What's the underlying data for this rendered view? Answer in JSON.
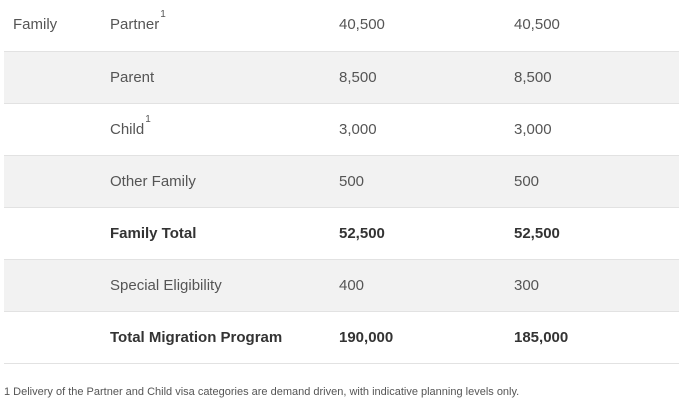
{
  "rows": [
    {
      "group": "Family",
      "category": "Partner",
      "note": "1",
      "col1": "40,500",
      "col2": "40,500",
      "shaded": false,
      "bold": false
    },
    {
      "group": "",
      "category": "Parent",
      "note": "",
      "col1": "8,500",
      "col2": "8,500",
      "shaded": true,
      "bold": false
    },
    {
      "group": "",
      "category": "Child",
      "note": "1",
      "col1": "3,000",
      "col2": "3,000",
      "shaded": false,
      "bold": false
    },
    {
      "group": "",
      "category": "Other Family",
      "note": "",
      "col1": "500",
      "col2": "500",
      "shaded": true,
      "bold": false
    },
    {
      "group": "",
      "category": "Family Total",
      "note": "",
      "col1": "52,500",
      "col2": "52,500",
      "shaded": false,
      "bold": true
    },
    {
      "group": "",
      "category": "Special Eligibility",
      "note": "",
      "col1": "400",
      "col2": "300",
      "shaded": true,
      "bold": false
    },
    {
      "group": "",
      "category": "Total Migration Program",
      "note": "",
      "col1": "190,000",
      "col2": "185,000",
      "shaded": false,
      "bold": true
    }
  ],
  "footnote": "1 Delivery of the Partner and Child visa categories are demand driven, with indicative planning levels only.",
  "colors": {
    "shaded_row": "#f2f2f2",
    "border": "#e2e2e2",
    "text": "#555555",
    "bold_text": "#333333"
  }
}
